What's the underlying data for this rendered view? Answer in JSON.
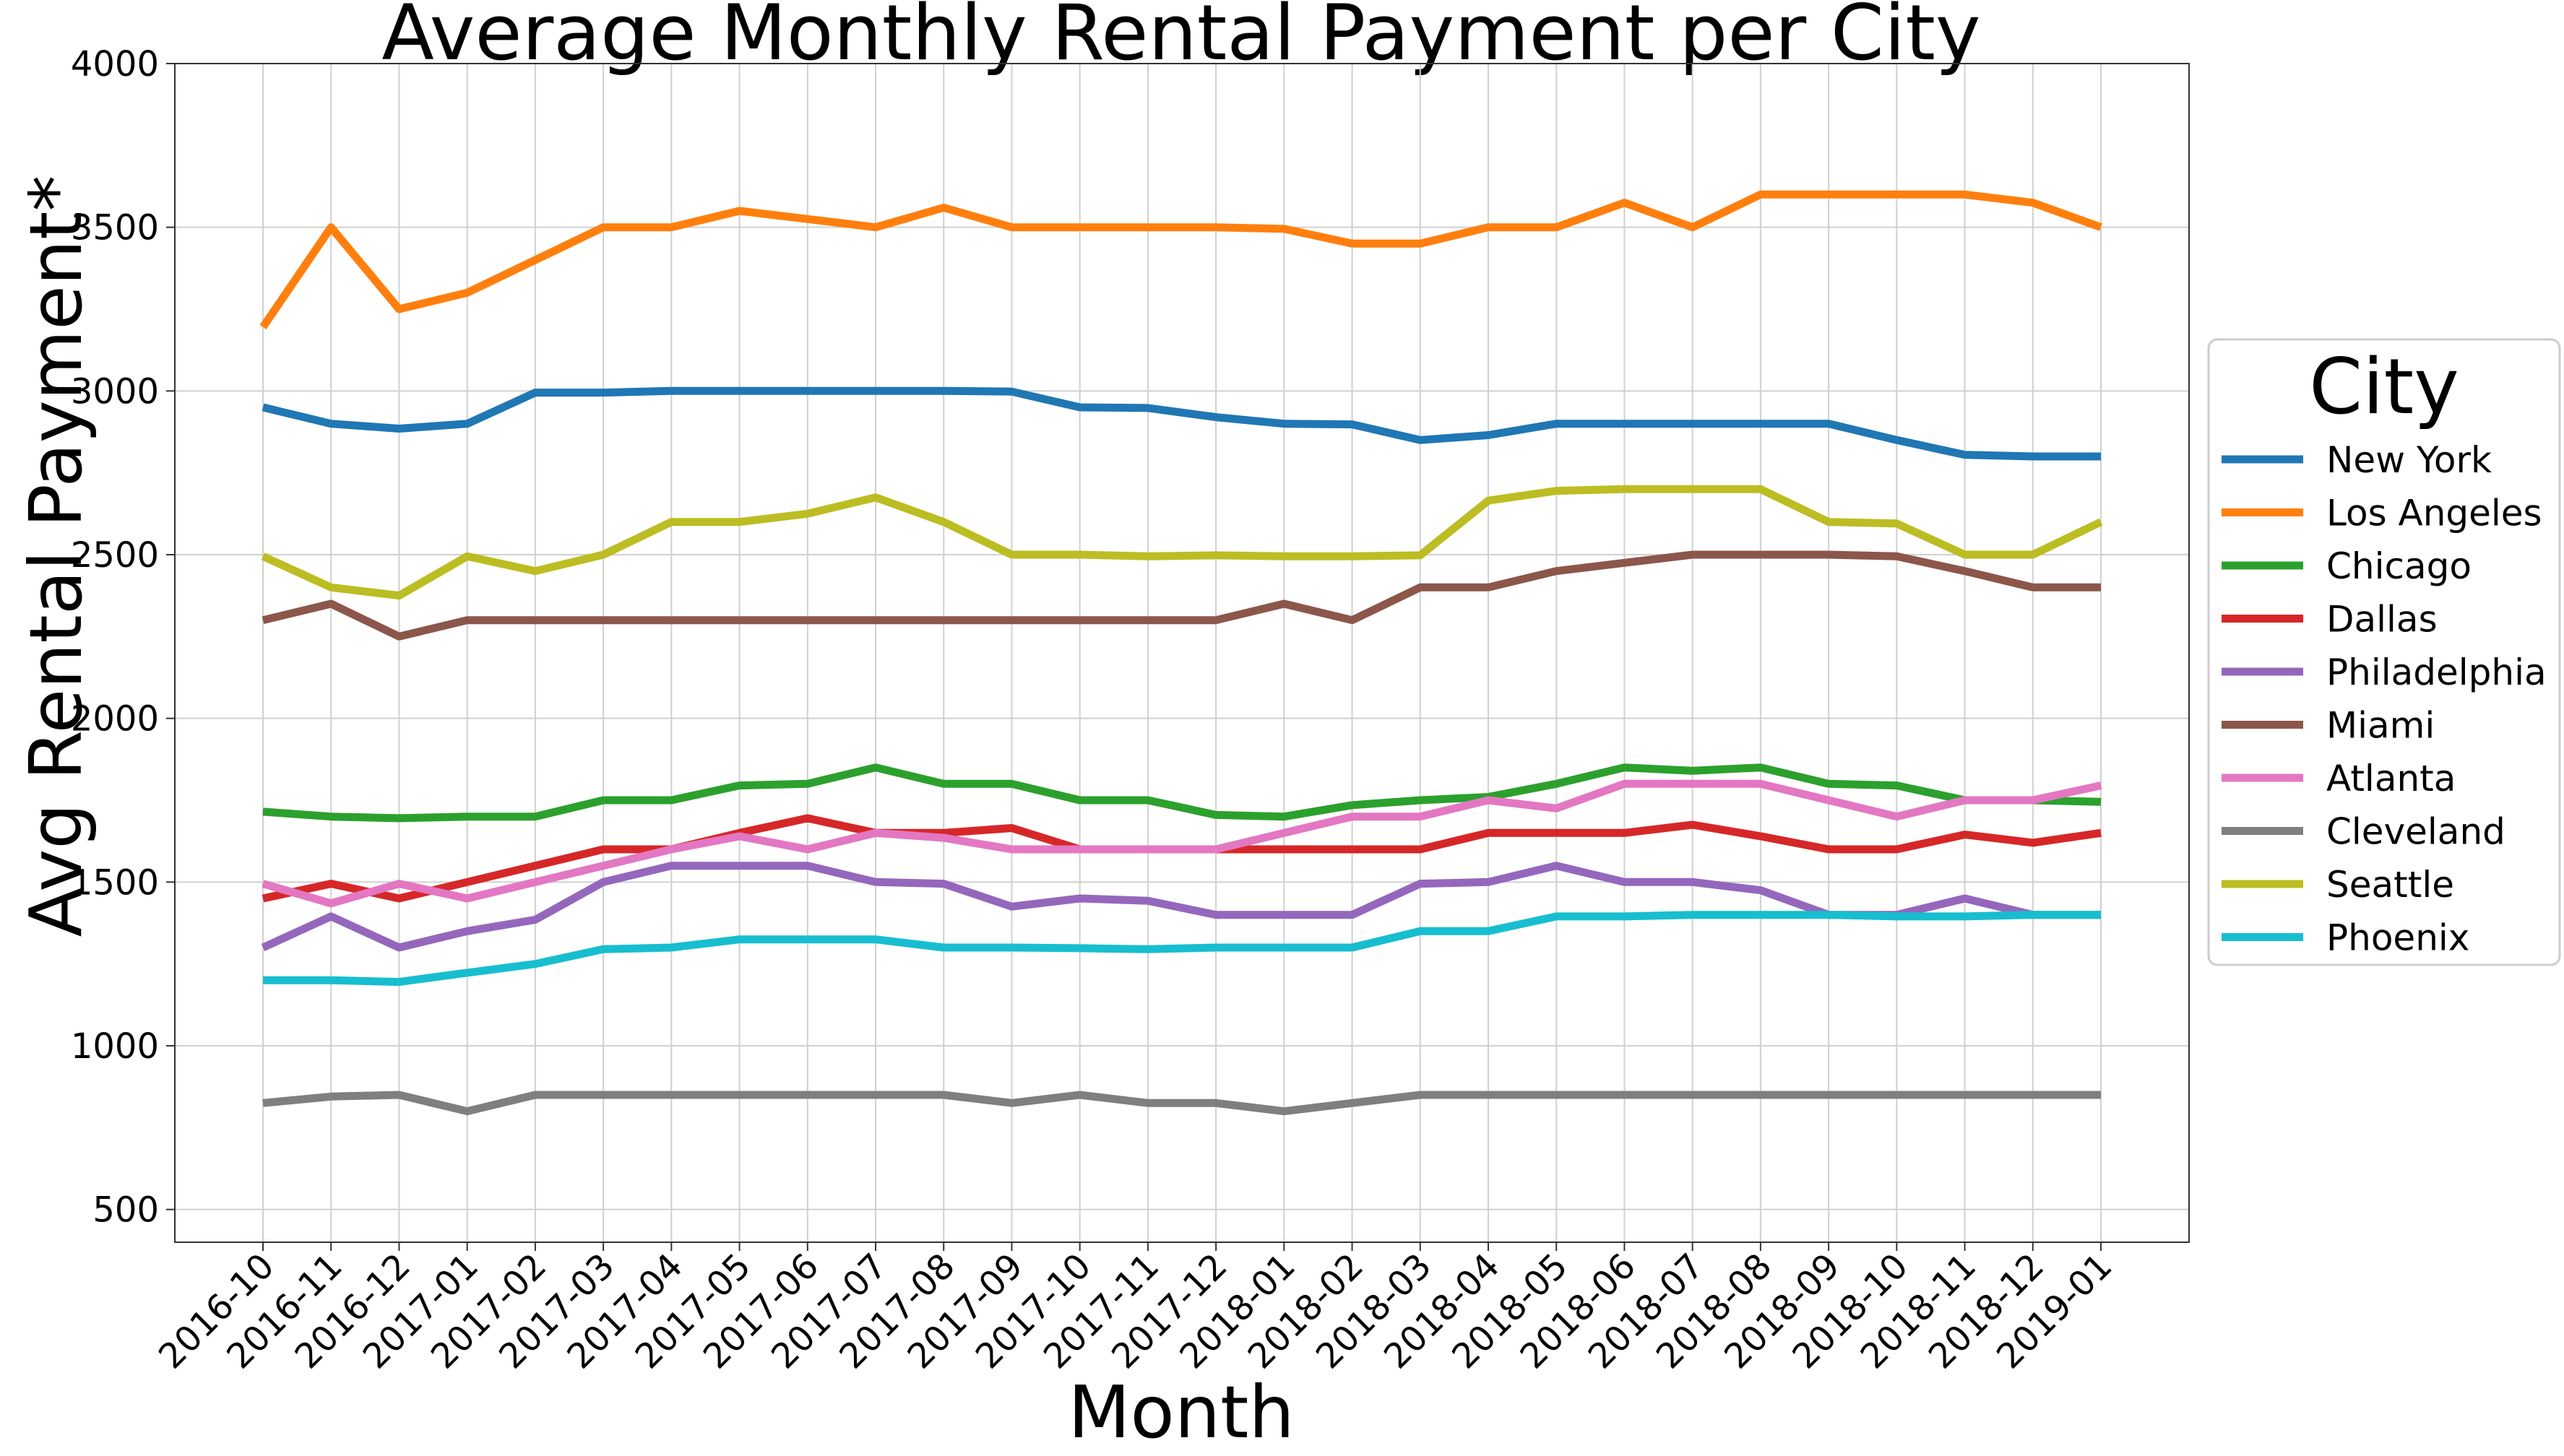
{
  "chart_data": {
    "type": "line",
    "title": "Average Monthly Rental Payment per City",
    "xlabel": "Month",
    "ylabel": "Avg Rental Payment*",
    "ylim": [
      400,
      4000
    ],
    "yticks": [
      500,
      1000,
      1500,
      2000,
      2500,
      3000,
      3500,
      4000
    ],
    "grid": true,
    "legend": {
      "title": "City",
      "placement": "right"
    },
    "categories": [
      "2016-10",
      "2016-11",
      "2016-12",
      "2017-01",
      "2017-02",
      "2017-03",
      "2017-04",
      "2017-05",
      "2017-06",
      "2017-07",
      "2017-08",
      "2017-09",
      "2017-10",
      "2017-11",
      "2017-12",
      "2018-01",
      "2018-02",
      "2018-03",
      "2018-04",
      "2018-05",
      "2018-06",
      "2018-07",
      "2018-08",
      "2018-09",
      "2018-10",
      "2018-11",
      "2018-12",
      "2019-01"
    ],
    "series": [
      {
        "name": "New York",
        "color": "#1f77b4",
        "values": [
          2950,
          2900,
          2885,
          2900,
          2995,
          2995,
          3000,
          3000,
          3000,
          3000,
          3000,
          2998,
          2950,
          2948,
          2920,
          2900,
          2898,
          2850,
          2865,
          2900,
          2900,
          2900,
          2900,
          2900,
          2850,
          2805,
          2800,
          2800
        ]
      },
      {
        "name": "Los Angeles",
        "color": "#ff7f0e",
        "values": [
          3195,
          3500,
          3250,
          3300,
          3400,
          3500,
          3500,
          3550,
          3525,
          3500,
          3560,
          3500,
          3500,
          3500,
          3500,
          3495,
          3450,
          3450,
          3500,
          3500,
          3575,
          3500,
          3600,
          3600,
          3600,
          3600,
          3575,
          3500
        ]
      },
      {
        "name": "Chicago",
        "color": "#2ca02c",
        "values": [
          1715,
          1700,
          1695,
          1700,
          1700,
          1750,
          1750,
          1795,
          1800,
          1850,
          1800,
          1800,
          1750,
          1750,
          1705,
          1700,
          1735,
          1750,
          1760,
          1800,
          1850,
          1840,
          1850,
          1800,
          1795,
          1750,
          1750,
          1745
        ]
      },
      {
        "name": "Dallas",
        "color": "#d62728",
        "values": [
          1450,
          1495,
          1450,
          1500,
          1550,
          1600,
          1600,
          1650,
          1695,
          1650,
          1650,
          1665,
          1600,
          1600,
          1600,
          1600,
          1600,
          1600,
          1650,
          1650,
          1650,
          1675,
          1640,
          1600,
          1600,
          1645,
          1620,
          1650
        ]
      },
      {
        "name": "Philadelphia",
        "color": "#9467bd",
        "values": [
          1300,
          1395,
          1300,
          1350,
          1385,
          1500,
          1550,
          1550,
          1550,
          1500,
          1495,
          1425,
          1450,
          1443,
          1400,
          1400,
          1400,
          1495,
          1500,
          1550,
          1500,
          1500,
          1475,
          1400,
          1400,
          1450,
          1400,
          1400
        ]
      },
      {
        "name": "Miami",
        "color": "#8c564b",
        "values": [
          2300,
          2350,
          2250,
          2300,
          2300,
          2300,
          2300,
          2300,
          2300,
          2300,
          2300,
          2300,
          2300,
          2300,
          2300,
          2350,
          2300,
          2400,
          2400,
          2450,
          2475,
          2500,
          2500,
          2500,
          2495,
          2450,
          2400,
          2400
        ]
      },
      {
        "name": "Atlanta",
        "color": "#e377c2",
        "values": [
          1495,
          1435,
          1495,
          1450,
          1500,
          1550,
          1600,
          1640,
          1600,
          1650,
          1635,
          1600,
          1600,
          1600,
          1600,
          1650,
          1700,
          1700,
          1750,
          1725,
          1800,
          1800,
          1800,
          1750,
          1700,
          1750,
          1750,
          1795
        ]
      },
      {
        "name": "Cleveland",
        "color": "#7f7f7f",
        "values": [
          825,
          845,
          850,
          800,
          850,
          850,
          850,
          850,
          850,
          850,
          850,
          825,
          850,
          825,
          825,
          800,
          825,
          850,
          850,
          850,
          850,
          850,
          850,
          850,
          850,
          850,
          850,
          850
        ]
      },
      {
        "name": "Seattle",
        "color": "#bcbd22",
        "values": [
          2495,
          2400,
          2375,
          2495,
          2450,
          2500,
          2600,
          2600,
          2625,
          2675,
          2600,
          2500,
          2500,
          2495,
          2498,
          2495,
          2495,
          2498,
          2665,
          2695,
          2700,
          2700,
          2700,
          2600,
          2595,
          2500,
          2500,
          2600
        ]
      },
      {
        "name": "Phoenix",
        "color": "#17becf",
        "values": [
          1200,
          1200,
          1195,
          1223,
          1250,
          1295,
          1300,
          1325,
          1325,
          1325,
          1300,
          1300,
          1298,
          1295,
          1300,
          1300,
          1300,
          1350,
          1350,
          1395,
          1395,
          1400,
          1400,
          1400,
          1395,
          1395,
          1400,
          1400
        ]
      }
    ]
  }
}
